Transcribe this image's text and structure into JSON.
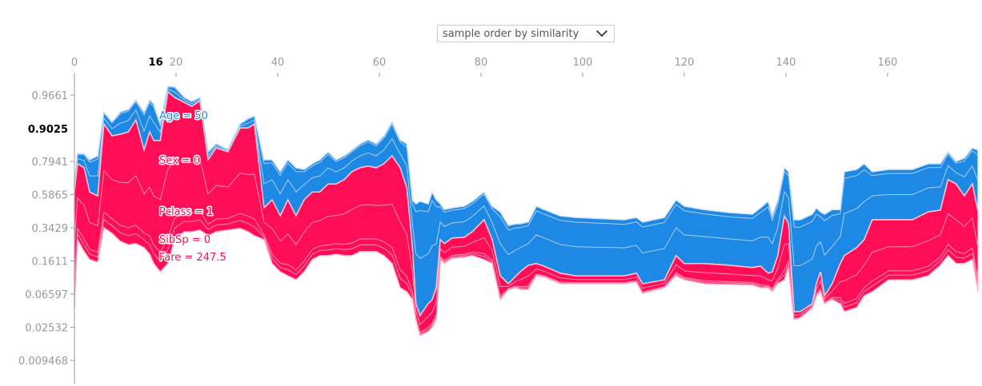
{
  "ordering_select": {
    "value": "sample order by similarity"
  },
  "colors": {
    "positive": "#ff0d57",
    "negative": "#1e88e5",
    "positive_edge": "#ffc3d5",
    "negative_edge": "#d1e6fa"
  },
  "chart_data": {
    "type": "area",
    "title": "",
    "xlabel": "",
    "ylabel": "",
    "x_ticks": [
      "0",
      "20",
      "40",
      "60",
      "80",
      "100",
      "120",
      "140",
      "160"
    ],
    "x_tick_values": [
      0,
      20,
      40,
      60,
      80,
      100,
      120,
      140,
      160
    ],
    "highlight_x": {
      "label": "16",
      "value": 16
    },
    "y_ticks": [
      {
        "label": "0.9661",
        "logit": 3.35
      },
      {
        "label": "0.7941",
        "logit": 1.35
      },
      {
        "label": "0.5865",
        "logit": 0.35
      },
      {
        "label": "0.3429",
        "logit": -0.65
      },
      {
        "label": "0.1611",
        "logit": -1.65
      },
      {
        "label": "0.06597",
        "logit": -2.65
      },
      {
        "label": "0.02532",
        "logit": -3.65
      },
      {
        "label": "0.009468",
        "logit": -4.65
      }
    ],
    "highlight_y": {
      "label": "0.9025",
      "logit": 2.34
    },
    "xlim": [
      0,
      177.8
    ],
    "ylim_logit": [
      -5.35,
      4.05
    ],
    "feature_labels": [
      {
        "text": "Age = 50",
        "effect": "negative"
      },
      {
        "text": "Sex = 0",
        "effect": "positive"
      },
      {
        "text": "Pclass = 1",
        "effect": "positive"
      },
      {
        "text": "SibSp = 0",
        "effect": "positive"
      },
      {
        "text": "Fare = 247.5",
        "effect": "positive"
      }
    ],
    "series_note": "per-sample logit: top = output + negative effects, output = f(x), bottom = output - positive effects",
    "x": [
      0,
      0.6,
      1.9,
      3,
      4.6,
      5.8,
      7.4,
      9,
      10.6,
      12.1,
      13.7,
      14.8,
      15.6,
      16.9,
      18.4,
      19.7,
      21.6,
      23.1,
      24.7,
      26.3,
      27.9,
      30.2,
      32.6,
      34.2,
      35.4,
      37.3,
      38.9,
      40.5,
      42,
      43.6,
      45.2,
      46.8,
      48.3,
      49.9,
      51.5,
      53.1,
      54.6,
      56.2,
      57.8,
      59.4,
      60.9,
      62.5,
      64.1,
      65.4,
      66.5,
      67.2,
      68,
      69.6,
      70.4,
      71.2,
      72,
      72.8,
      74.3,
      76.7,
      78.3,
      80.6,
      82.2,
      83.8,
      85.4,
      86.9,
      87.7,
      89.3,
      90.9,
      92.4,
      95.6,
      98.7,
      108.2,
      110.6,
      111.8,
      116.1,
      118.4,
      120,
      123.9,
      128.7,
      133.4,
      135,
      136.5,
      137.3,
      138.4,
      139.7,
      140.5,
      141.6,
      142.8,
      145.2,
      146,
      146.8,
      147.6,
      149.1,
      150.7,
      151.5,
      153.9,
      155.4,
      157,
      160.2,
      164.9,
      168,
      170.4,
      171.9,
      173.5,
      175.1,
      176.7,
      177.8
    ],
    "top": [
      0.67,
      1.59,
      1.59,
      1.4,
      1.52,
      2.84,
      2.55,
      2.84,
      2.92,
      3.21,
      2.84,
      3.21,
      3.08,
      2.48,
      3.61,
      3.61,
      3.28,
      3.16,
      3.28,
      1.64,
      1.88,
      1.71,
      2.48,
      2.65,
      2.72,
      1.4,
      1.4,
      1.04,
      1.4,
      1.16,
      1.11,
      1.28,
      1.4,
      1.64,
      1.4,
      1.52,
      1.69,
      1.88,
      2.0,
      1.88,
      2.12,
      2.55,
      2.0,
      1.88,
      0.19,
      0.07,
      0.15,
      0.07,
      0.43,
      0.19,
      0.07,
      -0.1,
      -0.05,
      0.0,
      0.15,
      0.43,
      0.0,
      -0.17,
      -0.58,
      -0.53,
      -0.53,
      -0.48,
      0.0,
      -0.1,
      -0.29,
      -0.34,
      -0.41,
      -0.34,
      -0.48,
      -0.34,
      0.19,
      0.0,
      -0.1,
      -0.19,
      -0.24,
      -0.05,
      0.15,
      -0.29,
      0.19,
      1.16,
      1.04,
      -0.41,
      -0.41,
      -0.24,
      -0.05,
      -0.17,
      -0.24,
      -0.1,
      -0.1,
      1.04,
      1.11,
      1.28,
      1.04,
      1.11,
      1.11,
      1.28,
      1.28,
      1.64,
      1.35,
      1.45,
      1.76,
      1.69
    ],
    "output": [
      0.43,
      1.28,
      1.16,
      0.43,
      0.31,
      2.48,
      2.12,
      2.17,
      2.24,
      2.6,
      1.69,
      2.24,
      1.98,
      1.98,
      3.45,
      3.28,
      3.13,
      3.01,
      3.18,
      1.4,
      1.76,
      1.64,
      2.36,
      2.36,
      2.48,
      -0.05,
      0.19,
      -0.29,
      0.19,
      -0.29,
      0.19,
      0.43,
      0.43,
      0.67,
      0.67,
      0.8,
      1.04,
      1.16,
      1.21,
      1.16,
      1.28,
      1.52,
      1.16,
      0.55,
      -1.25,
      -2.94,
      -3.3,
      -2.94,
      -2.82,
      -2.46,
      -1.01,
      -1.13,
      -0.96,
      -0.94,
      -0.77,
      -0.41,
      -1.01,
      -2.1,
      -2.34,
      -2.1,
      -1.98,
      -1.78,
      -1.73,
      -1.81,
      -2.02,
      -2.1,
      -2.1,
      -2.02,
      -2.34,
      -2.22,
      -1.49,
      -1.73,
      -1.73,
      -1.78,
      -1.85,
      -1.81,
      -2.02,
      -1.98,
      -1.49,
      -0.29,
      -0.53,
      -3.18,
      -3.18,
      -2.94,
      -2.34,
      -1.98,
      -2.7,
      -2.34,
      -1.73,
      -1.49,
      -1.25,
      -1.01,
      -0.41,
      -0.41,
      -0.41,
      -0.17,
      -0.12,
      0.8,
      0.67,
      0.31,
      0.67,
      -0.17
    ],
    "bottom": [
      -3.06,
      -1.01,
      -1.37,
      -1.61,
      -1.69,
      -0.65,
      -0.82,
      -1.06,
      -1.16,
      -1.13,
      -1.25,
      -1.45,
      -1.73,
      -1.98,
      -1.73,
      -1.01,
      -0.77,
      -0.77,
      -0.72,
      -0.89,
      -0.77,
      -0.72,
      -0.67,
      -0.77,
      -0.89,
      -1.01,
      -1.73,
      -1.98,
      -2.1,
      -2.22,
      -1.98,
      -1.61,
      -1.49,
      -1.49,
      -1.45,
      -1.49,
      -1.49,
      -1.37,
      -1.37,
      -1.37,
      -1.49,
      -1.73,
      -2.46,
      -2.58,
      -2.82,
      -3.42,
      -3.9,
      -3.78,
      -3.66,
      -3.42,
      -1.61,
      -1.73,
      -1.57,
      -1.54,
      -1.49,
      -1.61,
      -1.73,
      -2.82,
      -2.51,
      -2.46,
      -2.51,
      -2.51,
      -2.1,
      -2.14,
      -2.34,
      -2.34,
      -2.34,
      -2.29,
      -2.63,
      -2.46,
      -2.1,
      -2.22,
      -2.34,
      -2.36,
      -2.38,
      -2.46,
      -2.46,
      -2.58,
      -2.34,
      -2.22,
      -1.85,
      -3.42,
      -3.37,
      -3.06,
      -2.7,
      -2.58,
      -2.94,
      -2.82,
      -2.94,
      -3.18,
      -3.06,
      -2.7,
      -2.58,
      -2.22,
      -2.22,
      -2.1,
      -1.78,
      -1.49,
      -1.73,
      -1.73,
      -1.61,
      -2.58
    ]
  }
}
